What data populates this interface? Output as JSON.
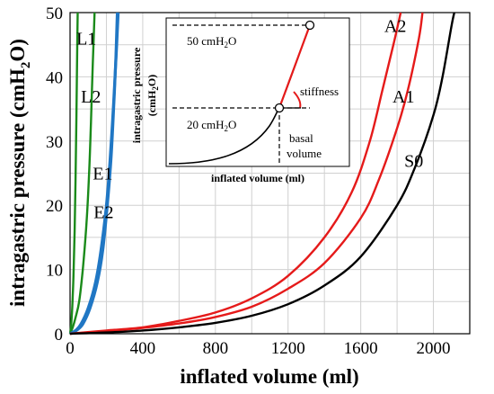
{
  "chart_data": {
    "type": "line",
    "xlabel": "inflated volume (ml)",
    "ylabel_main": "intragastric pressure (cmH",
    "ylabel_sub": "2",
    "ylabel_end": "O)",
    "xlim": [
      0,
      2200
    ],
    "ylim": [
      0,
      50
    ],
    "x_ticks": [
      0,
      400,
      800,
      1200,
      1600,
      2000
    ],
    "y_ticks": [
      0,
      10,
      20,
      30,
      40,
      50
    ],
    "grid": true,
    "series": [
      {
        "name": "L1",
        "color": "#1a8a1a",
        "points": [
          [
            0,
            0
          ],
          [
            5,
            1
          ],
          [
            10,
            3
          ],
          [
            15,
            6
          ],
          [
            20,
            10
          ],
          [
            25,
            16
          ],
          [
            30,
            24
          ],
          [
            35,
            34
          ],
          [
            40,
            46
          ],
          [
            42,
            50
          ]
        ],
        "label": {
          "x": 35,
          "y": 45
        }
      },
      {
        "name": "L2",
        "color": "#1a8a1a",
        "points": [
          [
            0,
            0
          ],
          [
            15,
            1
          ],
          [
            30,
            2.5
          ],
          [
            50,
            5
          ],
          [
            70,
            10
          ],
          [
            90,
            17
          ],
          [
            105,
            25
          ],
          [
            115,
            33
          ],
          [
            125,
            42
          ],
          [
            135,
            50
          ]
        ],
        "label": {
          "x": 60,
          "y": 36
        }
      },
      {
        "name": "E1",
        "color": "#2077c4",
        "points": [
          [
            0,
            0
          ],
          [
            30,
            0.5
          ],
          [
            60,
            1.5
          ],
          [
            100,
            4
          ],
          [
            140,
            8
          ],
          [
            170,
            13
          ],
          [
            200,
            20
          ],
          [
            220,
            27
          ],
          [
            240,
            36
          ],
          [
            255,
            44
          ],
          [
            265,
            50
          ]
        ],
        "label": {
          "x": 125,
          "y": 24
        }
      },
      {
        "name": "E2",
        "color": "#2077c4",
        "points": [
          [
            0,
            0
          ],
          [
            35,
            0.5
          ],
          [
            70,
            1.5
          ],
          [
            110,
            4
          ],
          [
            150,
            8
          ],
          [
            180,
            13
          ],
          [
            205,
            20
          ],
          [
            225,
            27
          ],
          [
            240,
            35
          ],
          [
            252,
            43
          ],
          [
            260,
            50
          ]
        ],
        "label": {
          "x": 130,
          "y": 18
        }
      },
      {
        "name": "A2",
        "color": "#e51a1a",
        "points": [
          [
            0,
            0
          ],
          [
            200,
            0.5
          ],
          [
            400,
            1
          ],
          [
            600,
            2
          ],
          [
            800,
            3.3
          ],
          [
            1000,
            5.5
          ],
          [
            1200,
            9
          ],
          [
            1400,
            15
          ],
          [
            1550,
            22
          ],
          [
            1650,
            30
          ],
          [
            1720,
            38
          ],
          [
            1780,
            45
          ],
          [
            1820,
            50
          ]
        ],
        "label": {
          "x": 1730,
          "y": 47
        }
      },
      {
        "name": "A1",
        "color": "#e51a1a",
        "points": [
          [
            0,
            0
          ],
          [
            200,
            0.4
          ],
          [
            400,
            0.9
          ],
          [
            600,
            1.6
          ],
          [
            800,
            2.6
          ],
          [
            1000,
            4.2
          ],
          [
            1200,
            7
          ],
          [
            1400,
            11
          ],
          [
            1600,
            18
          ],
          [
            1700,
            24
          ],
          [
            1800,
            32
          ],
          [
            1860,
            38
          ],
          [
            1920,
            46
          ],
          [
            1940,
            50
          ]
        ],
        "label": {
          "x": 1775,
          "y": 36
        }
      },
      {
        "name": "S0",
        "color": "#000000",
        "points": [
          [
            0,
            0
          ],
          [
            200,
            0.2
          ],
          [
            400,
            0.5
          ],
          [
            600,
            1
          ],
          [
            800,
            1.7
          ],
          [
            1000,
            2.8
          ],
          [
            1200,
            4.6
          ],
          [
            1400,
            7.5
          ],
          [
            1600,
            12
          ],
          [
            1800,
            20
          ],
          [
            1900,
            26
          ],
          [
            2000,
            34
          ],
          [
            2050,
            40
          ],
          [
            2100,
            48
          ],
          [
            2115,
            50
          ]
        ],
        "label": {
          "x": 1840,
          "y": 26
        }
      }
    ]
  },
  "inset": {
    "ylabel_main": "intragastric pressure",
    "ylabel_unit_a": "(cmH",
    "ylabel_unit_sub": "2",
    "ylabel_unit_b": "O)",
    "xlabel": "inflated volume (ml)",
    "p50_a": "50 cmH",
    "p50_sub": "2",
    "p50_b": "O",
    "p20_a": "20 cmH",
    "p20_sub": "2",
    "p20_b": "O",
    "stiffness": "stiffness",
    "basal": "basal",
    "volume": "volume"
  }
}
